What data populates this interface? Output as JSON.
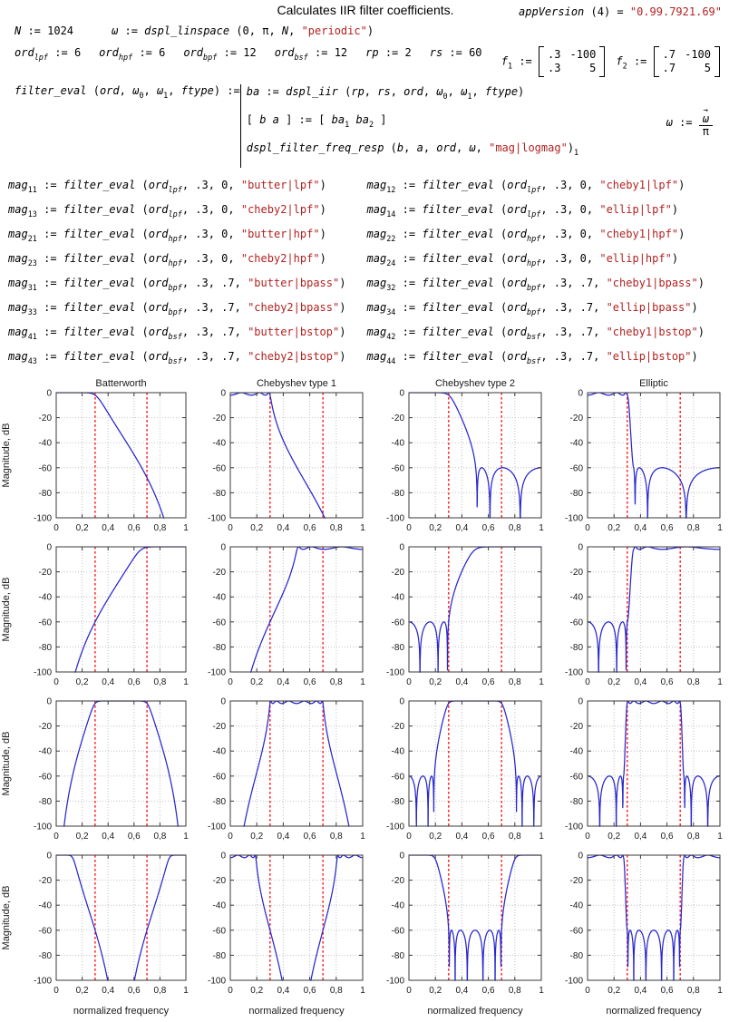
{
  "formulas": {
    "title": "Calculates IIR filter coefficients.",
    "appversion": [
      {
        "v": "appVersion"
      },
      {
        "t": " (4) = "
      },
      {
        "str": "0.99.7921.69"
      }
    ],
    "n_def": [
      {
        "v": "N"
      },
      {
        "t": " := 1024"
      }
    ],
    "omega_def": [
      {
        "v": "ω"
      },
      {
        "t": " := "
      },
      {
        "v": "dspl_linspace"
      },
      {
        "t": " (0, π, "
      },
      {
        "v": "N"
      },
      {
        "t": ", "
      },
      {
        "str": "periodic"
      },
      {
        "t": ")"
      }
    ],
    "ord_defs": [
      [
        {
          "v": "ord"
        },
        {
          "sub": "lpf"
        },
        {
          "t": " := 6"
        }
      ],
      [
        {
          "v": "ord"
        },
        {
          "sub": "hpf"
        },
        {
          "t": " := 6"
        }
      ],
      [
        {
          "v": "ord"
        },
        {
          "sub": "bpf"
        },
        {
          "t": " := 12"
        }
      ],
      [
        {
          "v": "ord"
        },
        {
          "sub": "bsf"
        },
        {
          "t": " := 12"
        }
      ],
      [
        {
          "v": "rp"
        },
        {
          "t": " := 2"
        }
      ],
      [
        {
          "v": "rs"
        },
        {
          "t": " := 60"
        }
      ]
    ],
    "f1": [
      {
        "v": "f"
      },
      {
        "sub": "1"
      },
      {
        "t": " := "
      },
      {
        "mat": [
          [
            ".3",
            "-100"
          ],
          [
            ".3",
            "5"
          ]
        ]
      }
    ],
    "f2": [
      {
        "v": "f"
      },
      {
        "sub": "2"
      },
      {
        "t": " := "
      },
      {
        "mat": [
          [
            ".7",
            "-100"
          ],
          [
            ".7",
            "5"
          ]
        ]
      }
    ],
    "feval_lhs": [
      {
        "v": "filter_eval"
      },
      {
        "t": " ("
      },
      {
        "v": "ord"
      },
      {
        "t": ", "
      },
      {
        "v": "ω"
      },
      {
        "sub": "0"
      },
      {
        "t": ", "
      },
      {
        "v": "ω"
      },
      {
        "sub": "1"
      },
      {
        "t": ", "
      },
      {
        "v": "ftype"
      },
      {
        "t": ") := "
      }
    ],
    "feval_body": [
      [
        {
          "v": "ba"
        },
        {
          "t": " := "
        },
        {
          "v": "dspl_iir"
        },
        {
          "t": " ("
        },
        {
          "v": "rp"
        },
        {
          "t": ", "
        },
        {
          "v": "rs"
        },
        {
          "t": ", "
        },
        {
          "v": "ord"
        },
        {
          "t": ", "
        },
        {
          "v": "ω"
        },
        {
          "sub": "0"
        },
        {
          "t": ", "
        },
        {
          "v": "ω"
        },
        {
          "sub": "1"
        },
        {
          "t": ", "
        },
        {
          "v": "ftype"
        },
        {
          "t": ")"
        }
      ],
      [
        {
          "t": "[ "
        },
        {
          "v": "b a"
        },
        {
          "t": " ] := [ "
        },
        {
          "v": "ba"
        },
        {
          "sub": "1"
        },
        {
          "t": "  "
        },
        {
          "v": "ba"
        },
        {
          "sub": "2"
        },
        {
          "t": " ]"
        }
      ],
      [
        {
          "v": "dspl_filter_freq_resp"
        },
        {
          "t": " ("
        },
        {
          "v": "b"
        },
        {
          "t": ", "
        },
        {
          "v": "a"
        },
        {
          "t": ", "
        },
        {
          "v": "ord"
        },
        {
          "t": ", "
        },
        {
          "v": "ω"
        },
        {
          "t": ", "
        },
        {
          "str": "mag|logmag"
        },
        {
          "t": ")"
        },
        {
          "sub": "1"
        }
      ]
    ],
    "omega_norm": [
      {
        "v": "ω"
      },
      {
        "t": " := "
      },
      {
        "frac": {
          "num": "ω",
          "den": "π",
          "vec": true
        }
      }
    ],
    "mag_shared": {
      "lhs": "mag",
      "assign": " := ",
      "fname": "filter_eval",
      "ord": "ord",
      "open": " (",
      "close": ")",
      "comma": ", "
    },
    "mag_defs": [
      {
        "sub": "11",
        "ord_sub": "lpf",
        "args": ".3, 0",
        "ftype": "butter|lpf"
      },
      {
        "sub": "12",
        "ord_sub": "lpf",
        "args": ".3, 0",
        "ftype": "cheby1|lpf"
      },
      {
        "sub": "13",
        "ord_sub": "lpf",
        "args": ".3, 0",
        "ftype": "cheby2|lpf"
      },
      {
        "sub": "14",
        "ord_sub": "lpf",
        "args": ".3, 0",
        "ftype": "ellip|lpf"
      },
      {
        "sub": "21",
        "ord_sub": "hpf",
        "args": ".3, 0",
        "ftype": "butter|hpf"
      },
      {
        "sub": "22",
        "ord_sub": "hpf",
        "args": ".3, 0",
        "ftype": "cheby1|hpf"
      },
      {
        "sub": "23",
        "ord_sub": "hpf",
        "args": ".3, 0",
        "ftype": "cheby2|hpf"
      },
      {
        "sub": "24",
        "ord_sub": "hpf",
        "args": ".3, 0",
        "ftype": "ellip|hpf"
      },
      {
        "sub": "31",
        "ord_sub": "bpf",
        "args": ".3, .7",
        "ftype": "butter|bpass"
      },
      {
        "sub": "32",
        "ord_sub": "bpf",
        "args": ".3, .7",
        "ftype": "cheby1|bpass"
      },
      {
        "sub": "33",
        "ord_sub": "bpf",
        "args": ".3, .7",
        "ftype": "cheby2|bpass"
      },
      {
        "sub": "34",
        "ord_sub": "bpf",
        "args": ".3, .7",
        "ftype": "ellip|bpass"
      },
      {
        "sub": "41",
        "ord_sub": "bsf",
        "args": ".3, .7",
        "ftype": "butter|bstop"
      },
      {
        "sub": "42",
        "ord_sub": "bsf",
        "args": ".3, .7",
        "ftype": "cheby1|bstop"
      },
      {
        "sub": "43",
        "ord_sub": "bsf",
        "args": ".3, .7",
        "ftype": "cheby2|bstop"
      },
      {
        "sub": "44",
        "ord_sub": "bsf",
        "args": ".3, .7",
        "ftype": "ellip|bstop"
      }
    ]
  },
  "chart_data": {
    "type": "line",
    "grid": "4x4",
    "column_titles": [
      "Batterworth",
      "Chebyshev type 1",
      "Chebyshev type 2",
      "Elliptic"
    ],
    "ylabel": "Magnitude, dB",
    "xlabel": "normalized frequency",
    "xlim": [
      0,
      1
    ],
    "ylim": [
      -100,
      0
    ],
    "x_ticks": [
      0,
      0.2,
      0.4,
      0.6,
      0.8,
      1
    ],
    "x_tick_labels": [
      "0",
      "0,2",
      "0,4",
      "0,6",
      "0,8",
      "1"
    ],
    "y_ticks": [
      0,
      -20,
      -40,
      -60,
      -80,
      -100
    ],
    "y_tick_labels": [
      "0",
      "-20",
      "-40",
      "-60",
      "-80",
      "-100"
    ],
    "marker_lines_x": [
      0.3,
      0.7
    ],
    "rp_dB": 2,
    "rs_dB": 60,
    "N_points": 1024,
    "colors": {
      "curve": "#2727cf",
      "marker": "#ff1a1a",
      "grid": "#c2c2c2",
      "frame": "#3a3a3a",
      "text": "#1a1a1a"
    },
    "plots": [
      {
        "row": 1,
        "col": 1,
        "family": "butter",
        "band": "lpf",
        "order": 6,
        "edges": [
          0.3
        ],
        "ftype": "butter|lpf"
      },
      {
        "row": 1,
        "col": 2,
        "family": "cheby1",
        "band": "lpf",
        "order": 6,
        "edges": [
          0.3
        ],
        "ftype": "cheby1|lpf"
      },
      {
        "row": 1,
        "col": 3,
        "family": "cheby2",
        "band": "lpf",
        "order": 6,
        "edges": [
          0.3
        ],
        "ftype": "cheby2|lpf"
      },
      {
        "row": 1,
        "col": 4,
        "family": "ellip",
        "band": "lpf",
        "order": 6,
        "edges": [
          0.3
        ],
        "ftype": "ellip|lpf"
      },
      {
        "row": 2,
        "col": 1,
        "family": "butter",
        "band": "hpf",
        "order": 6,
        "edges": [
          0.3
        ],
        "ftype": "butter|hpf"
      },
      {
        "row": 2,
        "col": 2,
        "family": "cheby1",
        "band": "hpf",
        "order": 6,
        "edges": [
          0.3
        ],
        "ftype": "cheby1|hpf"
      },
      {
        "row": 2,
        "col": 3,
        "family": "cheby2",
        "band": "hpf",
        "order": 6,
        "edges": [
          0.3
        ],
        "ftype": "cheby2|hpf"
      },
      {
        "row": 2,
        "col": 4,
        "family": "ellip",
        "band": "hpf",
        "order": 6,
        "edges": [
          0.3
        ],
        "ftype": "ellip|hpf"
      },
      {
        "row": 3,
        "col": 1,
        "family": "butter",
        "band": "bpass",
        "order": 12,
        "edges": [
          0.3,
          0.7
        ],
        "ftype": "butter|bpass"
      },
      {
        "row": 3,
        "col": 2,
        "family": "cheby1",
        "band": "bpass",
        "order": 12,
        "edges": [
          0.3,
          0.7
        ],
        "ftype": "cheby1|bpass"
      },
      {
        "row": 3,
        "col": 3,
        "family": "cheby2",
        "band": "bpass",
        "order": 12,
        "edges": [
          0.3,
          0.7
        ],
        "ftype": "cheby2|bpass"
      },
      {
        "row": 3,
        "col": 4,
        "family": "ellip",
        "band": "bpass",
        "order": 12,
        "edges": [
          0.3,
          0.7
        ],
        "ftype": "ellip|bpass"
      },
      {
        "row": 4,
        "col": 1,
        "family": "butter",
        "band": "bstop",
        "order": 12,
        "edges": [
          0.3,
          0.7
        ],
        "ftype": "butter|bstop"
      },
      {
        "row": 4,
        "col": 2,
        "family": "cheby1",
        "band": "bstop",
        "order": 12,
        "edges": [
          0.3,
          0.7
        ],
        "ftype": "cheby1|bstop"
      },
      {
        "row": 4,
        "col": 3,
        "family": "cheby2",
        "band": "bstop",
        "order": 12,
        "edges": [
          0.3,
          0.7
        ],
        "ftype": "cheby2|bstop"
      },
      {
        "row": 4,
        "col": 4,
        "family": "ellip",
        "band": "bstop",
        "order": 12,
        "edges": [
          0.3,
          0.7
        ],
        "ftype": "ellip|bstop"
      }
    ]
  }
}
